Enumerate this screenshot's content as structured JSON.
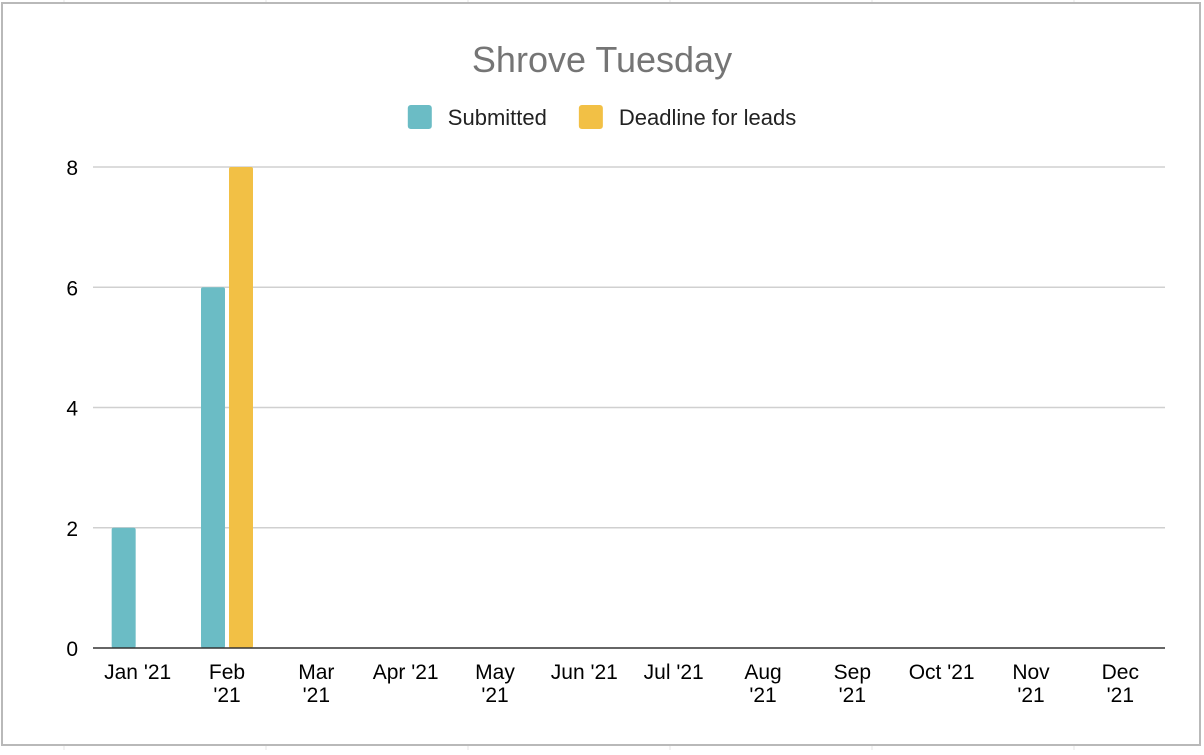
{
  "chart_data": {
    "type": "bar",
    "title": "Shrove Tuesday",
    "categories": [
      [
        "Jan '21"
      ],
      [
        "Feb",
        "'21"
      ],
      [
        "Mar",
        "'21"
      ],
      [
        "Apr '21"
      ],
      [
        "May",
        "'21"
      ],
      [
        "Jun '21"
      ],
      [
        "Jul '21"
      ],
      [
        "Aug",
        "'21"
      ],
      [
        "Sep",
        "'21"
      ],
      [
        "Oct '21"
      ],
      [
        "Nov",
        "'21"
      ],
      [
        "Dec",
        "'21"
      ]
    ],
    "series": [
      {
        "name": "Submitted",
        "color": "#6bbcc5",
        "values": [
          2,
          6,
          0,
          0,
          0,
          0,
          0,
          0,
          0,
          0,
          0,
          0
        ]
      },
      {
        "name": "Deadline for leads",
        "color": "#f2c045",
        "values": [
          0,
          8,
          0,
          0,
          0,
          0,
          0,
          0,
          0,
          0,
          0,
          0
        ]
      }
    ],
    "ylim": [
      0,
      8
    ],
    "yticks": [
      "0",
      "2",
      "4",
      "6",
      "8"
    ],
    "grid": true,
    "legend_position": "top"
  }
}
